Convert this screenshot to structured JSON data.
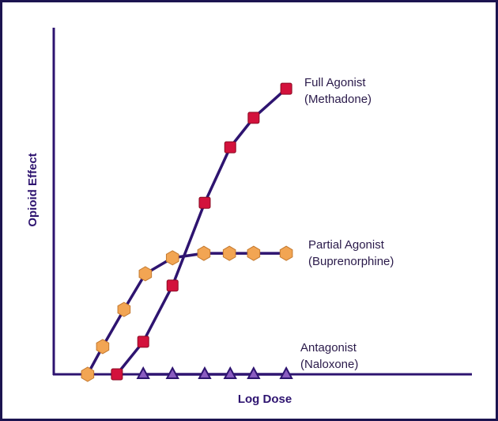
{
  "chart_data": {
    "type": "line",
    "xlabel": "Log Dose",
    "ylabel": "Opioid Effect",
    "xlim": [
      0,
      100
    ],
    "ylim": [
      0,
      100
    ],
    "line_color": "#2e1470",
    "series": [
      {
        "name": "Full Agonist",
        "drug": "(Methadone)",
        "color": "#d3123c",
        "marker": "square",
        "x": [
          15.1,
          21.4,
          28.4,
          36.1,
          42.2,
          47.8,
          55.6
        ],
        "values": [
          0,
          9.4,
          25.6,
          49.5,
          65.5,
          74.0,
          82.4
        ]
      },
      {
        "name": "Partial Agonist",
        "drug": "(Buprenorphine)",
        "color": "#f2a553",
        "marker": "hexagon",
        "x": [
          8.1,
          11.7,
          16.8,
          21.9,
          28.4,
          35.9,
          42.0,
          47.8,
          55.6
        ],
        "values": [
          0,
          8.0,
          18.7,
          29.0,
          33.6,
          34.9,
          34.9,
          34.9,
          34.9
        ]
      },
      {
        "name": "Antagonist",
        "drug": "(Naloxone)",
        "color": "#8a5cc0",
        "marker": "triangle",
        "x": [
          21.4,
          28.4,
          36.1,
          42.2,
          47.8,
          55.6
        ],
        "values": [
          0,
          0,
          0,
          0,
          0,
          0
        ]
      }
    ]
  }
}
